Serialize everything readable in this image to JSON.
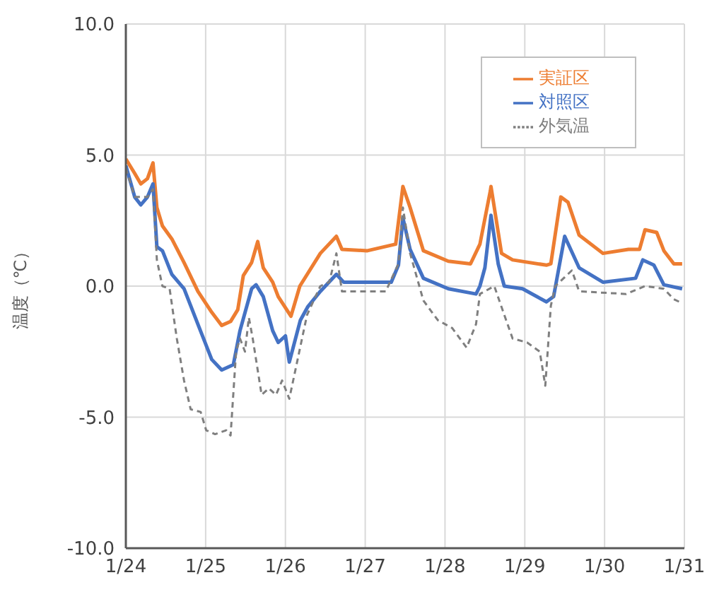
{
  "chart_data": {
    "type": "line",
    "ylabel": "温度（℃）",
    "xlim": [
      "--01-24",
      "--01-31"
    ],
    "xticks": [
      {
        "value": "--01-24",
        "label": "1/24"
      },
      {
        "value": "--01-25",
        "label": "1/25"
      },
      {
        "value": "--01-26",
        "label": "1/26"
      },
      {
        "value": "--01-27",
        "label": "1/27"
      },
      {
        "value": "--01-28",
        "label": "1/28"
      },
      {
        "value": "--01-29",
        "label": "1/29"
      },
      {
        "value": "--01-30",
        "label": "1/30"
      },
      {
        "value": "--01-31",
        "label": "1/31"
      }
    ],
    "ylim": [
      -10,
      10
    ],
    "yticks": [
      {
        "value": -10,
        "label": "-10.0"
      },
      {
        "value": -5,
        "label": "-5.0"
      },
      {
        "value": 0,
        "label": "0.0"
      },
      {
        "value": 5,
        "label": "5.0"
      },
      {
        "value": 10,
        "label": "10.0"
      }
    ],
    "grid": true,
    "legend": "top right",
    "marker": "none",
    "series": [
      {
        "name": "実証区",
        "color": "#ed7d31",
        "line_style": "solid",
        "x": [
          "--01-24T00:00",
          "--01-24T02:40",
          "--01-24T04:30",
          "--01-24T06:30",
          "--01-24T08:10",
          "--01-24T09:20",
          "--01-24T11:00",
          "--01-24T13:50",
          "--01-24T17:30",
          "--01-24T21:40",
          "--01-25T01:50",
          "--01-25T04:50",
          "--01-25T07:30",
          "--01-25T09:40",
          "--01-25T11:20",
          "--01-25T13:50",
          "--01-25T15:40",
          "--01-25T17:20",
          "--01-25T20:10",
          "--01-25T21:50",
          "--01-26T01:40",
          "--01-26T04:20",
          "--01-26T10:30",
          "--01-26T15:20",
          "--01-26T17:00",
          "--01-27T00:40",
          "--01-27T09:10",
          "--01-27T11:20",
          "--01-27T13:30",
          "--01-27T17:30",
          "--01-28T01:00",
          "--01-28T07:40",
          "--01-28T10:30",
          "--01-28T13:40",
          "--01-28T13:50",
          "--01-28T17:00",
          "--01-28T20:20",
          "--01-29T06:30",
          "--01-29T07:50",
          "--01-29T10:50",
          "--01-29T13:00",
          "--01-29T16:20",
          "--01-29T23:30",
          "--01-30T07:10",
          "--01-30T10:30",
          "--01-30T12:10",
          "--01-30T15:40",
          "--01-30T17:50",
          "--01-30T20:50",
          "--01-30T23:20"
        ],
        "values": [
          4.85,
          4.3,
          3.9,
          4.1,
          4.7,
          3.0,
          2.3,
          1.8,
          0.9,
          -0.2,
          -1.0,
          -1.5,
          -1.35,
          -0.9,
          0.4,
          0.9,
          1.7,
          0.7,
          0.15,
          -0.4,
          -1.15,
          0,
          1.25,
          1.9,
          1.4,
          1.35,
          1.6,
          3.8,
          3.0,
          1.35,
          0.95,
          0.85,
          1.6,
          3.65,
          3.8,
          1.25,
          1.0,
          0.8,
          0.85,
          3.4,
          3.2,
          1.95,
          1.25,
          1.4,
          1.4,
          2.15,
          2.05,
          1.35,
          0.85,
          0.85
        ]
      },
      {
        "name": "対照区",
        "color": "#4472c4",
        "line_style": "solid",
        "x": [
          "--01-24T00:00",
          "--01-24T02:40",
          "--01-24T04:30",
          "--01-24T06:30",
          "--01-24T08:10",
          "--01-24T09:20",
          "--01-24T11:00",
          "--01-24T13:50",
          "--01-24T17:30",
          "--01-24T21:40",
          "--01-25T01:50",
          "--01-25T04:50",
          "--01-25T08:20",
          "--01-25T10:20",
          "--01-25T13:50",
          "--01-25T15:10",
          "--01-25T17:20",
          "--01-25T20:10",
          "--01-25T21:50",
          "--01-26T00:00",
          "--01-26T01:10",
          "--01-26T04:30",
          "--01-26T06:40",
          "--01-26T10:30",
          "--01-26T15:20",
          "--01-26T17:30",
          "--01-27T00:40",
          "--01-27T07:50",
          "--01-27T10:00",
          "--01-27T11:20",
          "--01-27T13:30",
          "--01-27T17:30",
          "--01-28T01:00",
          "--01-28T09:20",
          "--01-28T10:30",
          "--01-28T12:00",
          "--01-28T13:50",
          "--01-28T16:00",
          "--01-28T17:50",
          "--01-28T23:20",
          "--01-29T06:30",
          "--01-29T08:40",
          "--01-29T12:00",
          "--01-29T16:20",
          "--01-29T23:30",
          "--01-30T09:20",
          "--01-30T11:30",
          "--01-30T14:50",
          "--01-30T17:50",
          "--01-30T23:20"
        ],
        "values": [
          4.6,
          3.4,
          3.1,
          3.4,
          3.9,
          1.5,
          1.35,
          0.45,
          -0.1,
          -1.45,
          -2.8,
          -3.2,
          -3.0,
          -1.7,
          -0.1,
          0.05,
          -0.4,
          -1.7,
          -2.15,
          -1.9,
          -2.9,
          -1.3,
          -0.8,
          -0.2,
          0.45,
          0.15,
          0.15,
          0.15,
          0.8,
          2.6,
          1.4,
          0.3,
          -0.1,
          -0.3,
          0,
          0.7,
          2.7,
          0.85,
          0,
          -0.1,
          -0.6,
          -0.4,
          1.9,
          0.7,
          0.15,
          0.3,
          1.0,
          0.8,
          0.05,
          -0.1
        ]
      },
      {
        "name": "外気温",
        "color": "#7f7f7f",
        "line_style": "dashed",
        "x": [
          "--01-24T00:00",
          "--01-24T02:40",
          "--01-24T06:30",
          "--01-24T08:10",
          "--01-24T09:20",
          "--01-24T11:00",
          "--01-24T13:10",
          "--01-24T15:20",
          "--01-24T17:30",
          "--01-24T19:30",
          "--01-24T22:30",
          "--01-25T00:10",
          "--01-25T02:50",
          "--01-25T06:10",
          "--01-25T07:30",
          "--01-25T09:10",
          "--01-25T10:20",
          "--01-25T11:50",
          "--01-25T13:00",
          "--01-25T14:10",
          "--01-25T16:50",
          "--01-25T19:00",
          "--01-25T21:10",
          "--01-25T23:00",
          "--01-26T01:10",
          "--01-26T06:30",
          "--01-26T10:30",
          "--01-26T13:10",
          "--01-26T15:20",
          "--01-26T17:00",
          "--01-27T06:10",
          "--01-27T10:00",
          "--01-27T11:20",
          "--01-27T13:30",
          "--01-27T17:30",
          "--01-27T21:50",
          "--01-28T02:10",
          "--01-28T06:30",
          "--01-28T09:20",
          "--01-28T10:30",
          "--01-28T14:50",
          "--01-28T17:50",
          "--01-28T20:20",
          "--01-29T00:40",
          "--01-29T04:30",
          "--01-29T06:10",
          "--01-29T07:50",
          "--01-29T09:10",
          "--01-29T14:10",
          "--01-29T16:20",
          "--01-30T06:30",
          "--01-30T12:10",
          "--01-30T17:50",
          "--01-30T20:50",
          "--01-30T23:20"
        ],
        "values": [
          4.5,
          3.4,
          3.4,
          3.7,
          1.0,
          0,
          -0.1,
          -2.0,
          -3.6,
          -4.7,
          -4.8,
          -5.5,
          -5.65,
          -5.5,
          -5.7,
          -2.5,
          -2.0,
          -2.5,
          -1.2,
          -2.0,
          -4.15,
          -3.9,
          -4.15,
          -3.6,
          -4.3,
          -1.1,
          0,
          0.15,
          1.25,
          -0.2,
          -0.2,
          0.85,
          3.0,
          1.25,
          -0.55,
          -1.3,
          -1.6,
          -2.35,
          -1.45,
          -0.3,
          0,
          -1.1,
          -2.0,
          -2.15,
          -2.5,
          -3.8,
          -0.75,
          0,
          0.6,
          -0.2,
          -0.3,
          0,
          -0.1,
          -0.5,
          -0.65
        ]
      }
    ]
  }
}
